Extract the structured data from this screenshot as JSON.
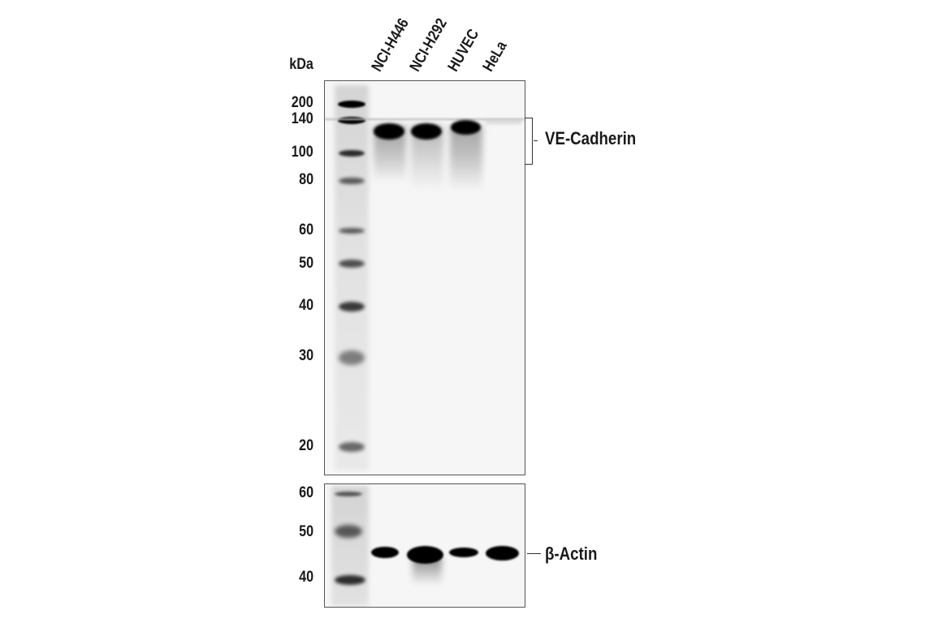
{
  "unit_label": "kDa",
  "lanes": [
    "NCI-H446",
    "NCI-H292",
    "HUVEC",
    "HeLa"
  ],
  "top_panel": {
    "markers": [
      "200",
      "140",
      "100",
      "80",
      "60",
      "50",
      "40",
      "30",
      "20"
    ],
    "target": "VE-Cadherin"
  },
  "bottom_panel": {
    "markers": [
      "60",
      "50",
      "40"
    ],
    "target": "β-Actin"
  }
}
